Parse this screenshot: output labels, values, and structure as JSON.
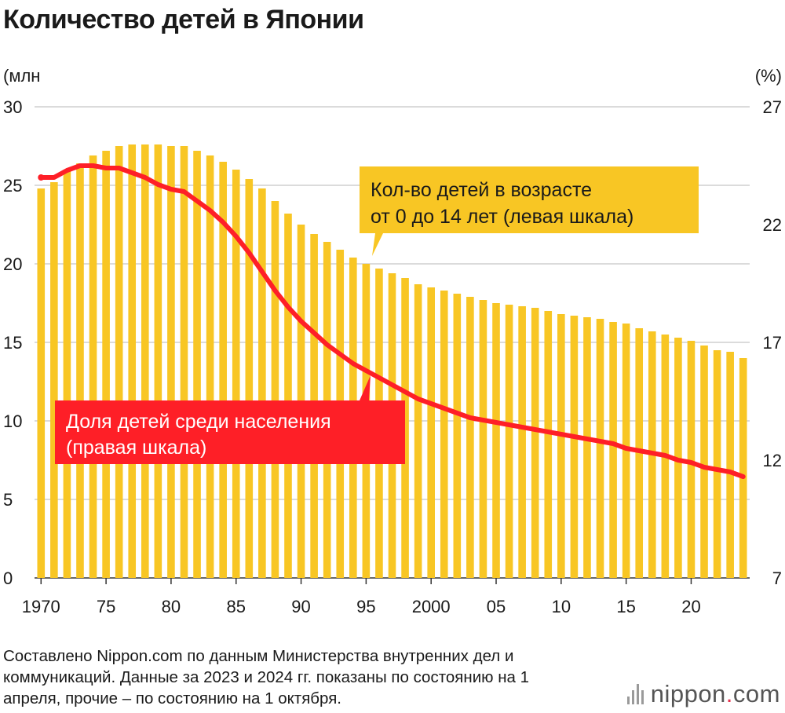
{
  "title": "Количество детей в Японии",
  "source_text": "Составлено Nippon.com по данным Министерства внутренних дел и коммуникаций. Данные за 2023 и 2024 гг. показаны по состоянию на 1 апреля, прочие – по состоянию на 1 октября.",
  "logo": {
    "main": "nippon",
    "dot": ".",
    "suffix": "com",
    "icon": "nippon-bars-icon"
  },
  "colors": {
    "bar": "#f8c624",
    "line": "#fe1f27",
    "callout_yellow": "#f8c624",
    "callout_red": "#fe1f27",
    "grid": "#cfcfcf",
    "axis": "#333333"
  },
  "chart_data": {
    "type": "bar+line",
    "title": "Количество детей в Японии",
    "y_left_unit": "(млн",
    "y_right_unit": "(%)",
    "y_left_range": [
      0,
      30
    ],
    "y_left_ticks": [
      0,
      5,
      10,
      15,
      20,
      25,
      30
    ],
    "y_right_range": [
      7,
      27
    ],
    "y_right_ticks": [
      7,
      12,
      17,
      22,
      27
    ],
    "x_tick_years": [
      1970,
      1975,
      1980,
      1985,
      1990,
      1995,
      2000,
      2005,
      2010,
      2015,
      2020
    ],
    "x_tick_labels": [
      "1970",
      "75",
      "80",
      "85",
      "90",
      "95",
      "2000",
      "05",
      "10",
      "15",
      "20"
    ],
    "years": [
      1970,
      1971,
      1972,
      1973,
      1974,
      1975,
      1976,
      1977,
      1978,
      1979,
      1980,
      1981,
      1982,
      1983,
      1984,
      1985,
      1986,
      1987,
      1988,
      1989,
      1990,
      1991,
      1992,
      1993,
      1994,
      1995,
      1996,
      1997,
      1998,
      1999,
      2000,
      2001,
      2002,
      2003,
      2004,
      2005,
      2006,
      2007,
      2008,
      2009,
      2010,
      2011,
      2012,
      2013,
      2014,
      2015,
      2016,
      2017,
      2018,
      2019,
      2020,
      2021,
      2022,
      2023,
      2024
    ],
    "series": [
      {
        "name": "Кол-во детей в возрасте от 0 до 14 лет (левая шкала)",
        "axis": "left",
        "type": "bar",
        "values": [
          24.8,
          25.2,
          26.0,
          26.4,
          26.9,
          27.2,
          27.5,
          27.6,
          27.6,
          27.6,
          27.5,
          27.5,
          27.2,
          26.9,
          26.5,
          26.0,
          25.4,
          24.8,
          24.0,
          23.2,
          22.5,
          21.9,
          21.4,
          20.9,
          20.4,
          20.0,
          19.7,
          19.4,
          19.1,
          18.7,
          18.5,
          18.3,
          18.1,
          17.9,
          17.7,
          17.5,
          17.4,
          17.3,
          17.2,
          17.0,
          16.8,
          16.7,
          16.6,
          16.5,
          16.3,
          16.2,
          15.9,
          15.7,
          15.5,
          15.3,
          15.1,
          14.8,
          14.5,
          14.4,
          14.0
        ]
      },
      {
        "name": "Доля детей среди населения (правая шкала)",
        "axis": "right",
        "type": "line",
        "values": [
          24.0,
          24.0,
          24.3,
          24.5,
          24.5,
          24.4,
          24.4,
          24.2,
          24.0,
          23.7,
          23.5,
          23.4,
          23.0,
          22.6,
          22.1,
          21.5,
          20.8,
          20.0,
          19.2,
          18.5,
          17.9,
          17.4,
          16.9,
          16.5,
          16.1,
          15.8,
          15.5,
          15.2,
          14.9,
          14.6,
          14.4,
          14.2,
          14.0,
          13.8,
          13.7,
          13.6,
          13.5,
          13.4,
          13.3,
          13.2,
          13.1,
          13.0,
          12.9,
          12.8,
          12.7,
          12.5,
          12.4,
          12.3,
          12.2,
          12.0,
          11.9,
          11.7,
          11.6,
          11.5,
          11.3
        ]
      }
    ],
    "annotations": [
      {
        "target": "bars",
        "lines": [
          "Кол-во детей в возрасте",
          "от 0 до 14 лет (левая шкала)"
        ]
      },
      {
        "target": "line",
        "lines": [
          "Доля детей среди населения",
          "(правая шкала)"
        ]
      }
    ]
  }
}
